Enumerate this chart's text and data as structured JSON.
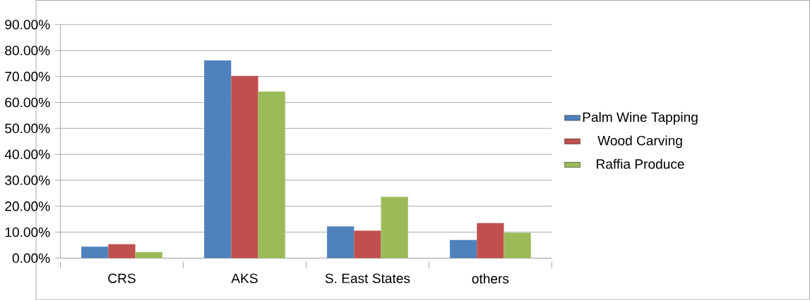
{
  "chart_data": {
    "type": "bar",
    "categories": [
      "CRS",
      "AKS",
      "S. East States",
      "others"
    ],
    "series": [
      {
        "name": "Palm Wine Tapping",
        "color": "#4f81bd",
        "values": [
          4.4,
          76.2,
          12.2,
          7.0
        ]
      },
      {
        "name": "Wood Carving",
        "color": "#c0504d",
        "values": [
          5.4,
          70.2,
          10.6,
          13.5
        ]
      },
      {
        "name": "Raffia Produce",
        "color": "#9bbb59",
        "values": [
          2.3,
          64.2,
          23.6,
          9.8
        ]
      }
    ],
    "ylim": [
      0,
      90
    ],
    "yticks": [
      {
        "value": 0,
        "label": "0.00%"
      },
      {
        "value": 10,
        "label": "10.00%"
      },
      {
        "value": 20,
        "label": "20.00%"
      },
      {
        "value": 30,
        "label": "30.00%"
      },
      {
        "value": 40,
        "label": "40.00%"
      },
      {
        "value": 50,
        "label": "50.00%"
      },
      {
        "value": 60,
        "label": "60.00%"
      },
      {
        "value": 70,
        "label": "70.00%"
      },
      {
        "value": 80,
        "label": "80.00%"
      },
      {
        "value": 90,
        "label": "90.00%"
      }
    ],
    "grid": "y",
    "legend": "right"
  }
}
